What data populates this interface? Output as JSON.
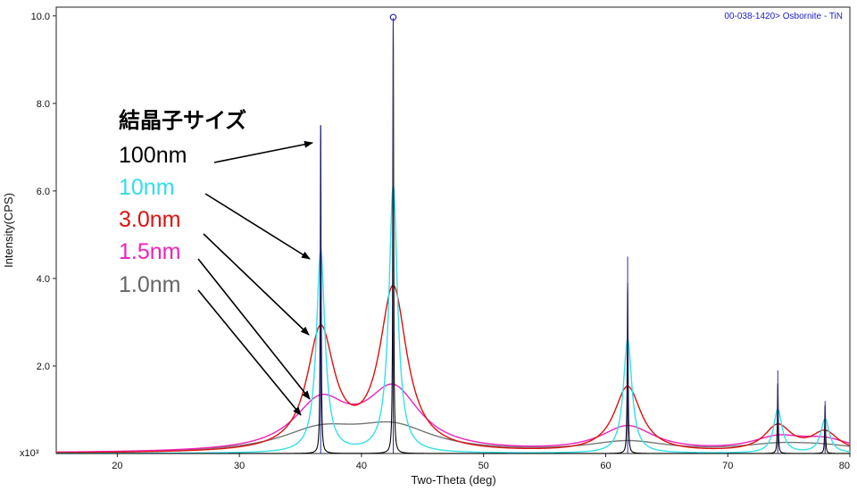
{
  "chart_data": {
    "type": "line",
    "xlabel": "Two-Theta (deg)",
    "ylabel": "Intensity(CPS)",
    "y_multiplier_label": "x10³",
    "xlim": [
      15,
      80
    ],
    "ylim": [
      0,
      10.2
    ],
    "x_ticks": [
      20,
      30,
      40,
      50,
      60,
      70,
      80
    ],
    "y_ticks": [
      {
        "value": 2,
        "label": "2.0"
      },
      {
        "value": 4,
        "label": "4.0"
      },
      {
        "value": 6,
        "label": "6.0"
      },
      {
        "value": 8,
        "label": "8.0"
      },
      {
        "value": 10,
        "label": "10.0"
      }
    ],
    "reference_label": "00-038-1420> Osbornite - TiN",
    "reference_peaks": [
      {
        "x": 36.66,
        "y": 7.5
      },
      {
        "x": 42.6,
        "y": 9.95
      },
      {
        "x": 61.8,
        "y": 4.5
      },
      {
        "x": 74.1,
        "y": 1.9
      },
      {
        "x": 77.97,
        "y": 1.2
      }
    ],
    "peak_positions": [
      36.66,
      42.6,
      61.8,
      74.1,
      77.97
    ],
    "legend_title": "結晶子サイズ",
    "series": [
      {
        "name": "100nm",
        "color": "#000000",
        "fwhm": 0.08,
        "heights": [
          7.5,
          9.9,
          3.9,
          1.6,
          1.1
        ]
      },
      {
        "name": "10nm",
        "color": "#33e0e8",
        "fwhm": 0.85,
        "heights": [
          4.6,
          6.1,
          2.6,
          1.0,
          0.78
        ]
      },
      {
        "name": "3.0nm",
        "color": "#dd1111",
        "fwhm": 2.7,
        "heights": [
          2.75,
          3.7,
          1.5,
          0.6,
          0.45
        ]
      },
      {
        "name": "1.5nm",
        "color": "#ee22bb",
        "fwhm": 5.4,
        "heights": [
          1.1,
          1.38,
          0.58,
          0.3,
          0.25
        ]
      },
      {
        "name": "1.0nm",
        "color": "#777777",
        "fwhm": 8.0,
        "heights": [
          0.48,
          0.55,
          0.24,
          0.15,
          0.12
        ]
      }
    ],
    "legend_colors": {
      "title": "#000000",
      "100nm": "#000000",
      "10nm": "#33dce8",
      "3.0nm": "#dd1111",
      "1.5nm": "#ee22bb",
      "1.0nm": "#666666"
    }
  }
}
